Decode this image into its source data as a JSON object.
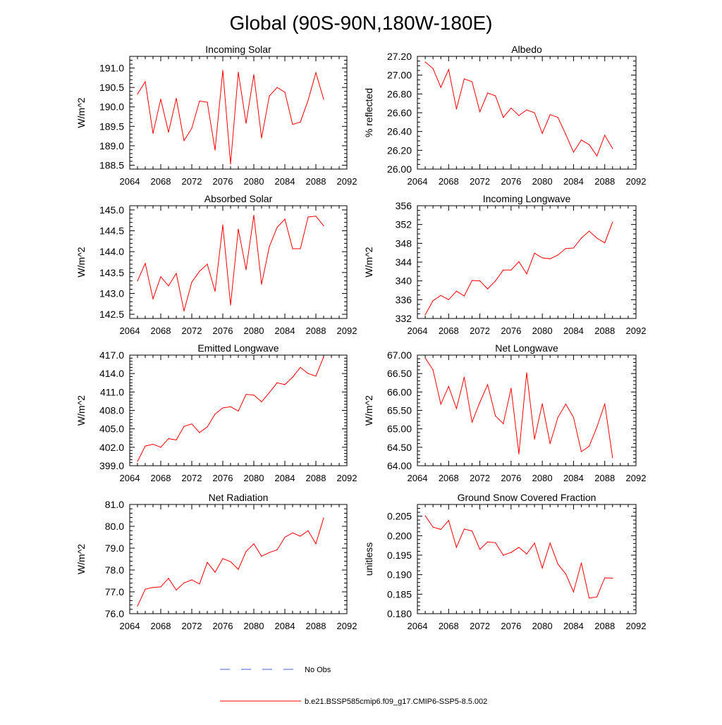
{
  "figure": {
    "title": "Global (90S-90N,180W-180E)",
    "legend": [
      {
        "label": "No Obs",
        "color": "#4a5fd0",
        "style": "dashed"
      },
      {
        "label": "b.e21.BSSP585cmip6.f09_g17.CMIP6-SSP5-8.5.002",
        "color": "#ff0000",
        "style": "solid"
      }
    ]
  },
  "chart_data": [
    {
      "type": "line",
      "title": "Incoming Solar",
      "xlabel": "",
      "ylabel": "W/m^2",
      "xlim": [
        2064,
        2092
      ],
      "xticks": [
        2064,
        2068,
        2072,
        2076,
        2080,
        2084,
        2088,
        2092
      ],
      "xminor": 1,
      "ylim": [
        188.4,
        191.3
      ],
      "yticks": [
        188.5,
        189.0,
        189.5,
        190.0,
        190.5,
        191.0
      ],
      "yminor": 0.1,
      "decimals": 1,
      "x": [
        2065,
        2066,
        2067,
        2068,
        2069,
        2070,
        2071,
        2072,
        2073,
        2074,
        2075,
        2076,
        2077,
        2078,
        2079,
        2080,
        2081,
        2082,
        2083,
        2084,
        2085,
        2086,
        2087,
        2088,
        2089
      ],
      "series": [
        {
          "name": "b.e21.BSSP585cmip6.f09_g17.CMIP6-SSP5-8.5.002",
          "color": "#ff0000",
          "values": [
            190.33,
            190.65,
            189.32,
            190.2,
            189.35,
            190.22,
            189.13,
            189.45,
            190.15,
            190.12,
            188.89,
            190.94,
            188.53,
            190.89,
            189.58,
            190.83,
            189.2,
            190.28,
            190.5,
            190.38,
            189.55,
            189.61,
            190.17,
            190.88,
            190.2
          ]
        }
      ]
    },
    {
      "type": "line",
      "title": "Albedo",
      "xlabel": "",
      "ylabel": "% reflected",
      "xlim": [
        2064,
        2092
      ],
      "xticks": [
        2064,
        2068,
        2072,
        2076,
        2080,
        2084,
        2088,
        2092
      ],
      "xminor": 1,
      "ylim": [
        26.0,
        27.2
      ],
      "yticks": [
        26.0,
        26.2,
        26.4,
        26.6,
        26.8,
        27.0,
        27.2
      ],
      "yminor": 0.05,
      "decimals": 2,
      "x": [
        2065,
        2066,
        2067,
        2068,
        2069,
        2070,
        2071,
        2072,
        2073,
        2074,
        2075,
        2076,
        2077,
        2078,
        2079,
        2080,
        2081,
        2082,
        2083,
        2084,
        2085,
        2086,
        2087,
        2088,
        2089
      ],
      "series": [
        {
          "name": "b.e21.BSSP585cmip6.f09_g17.CMIP6-SSP5-8.5.002",
          "color": "#ff0000",
          "values": [
            27.14,
            27.07,
            26.87,
            27.06,
            26.64,
            26.96,
            26.93,
            26.61,
            26.81,
            26.78,
            26.55,
            26.65,
            26.57,
            26.63,
            26.6,
            26.38,
            26.58,
            26.55,
            26.37,
            26.18,
            26.31,
            26.26,
            26.14,
            26.36,
            26.22
          ]
        }
      ]
    },
    {
      "type": "line",
      "title": "Absorbed Solar",
      "xlabel": "",
      "ylabel": "W/m^2",
      "xlim": [
        2064,
        2092
      ],
      "xticks": [
        2064,
        2068,
        2072,
        2076,
        2080,
        2084,
        2088,
        2092
      ],
      "xminor": 1,
      "ylim": [
        142.4,
        145.1
      ],
      "yticks": [
        142.5,
        143.0,
        143.5,
        144.0,
        144.5,
        145.0
      ],
      "yminor": 0.1,
      "decimals": 1,
      "x": [
        2065,
        2066,
        2067,
        2068,
        2069,
        2070,
        2071,
        2072,
        2073,
        2074,
        2075,
        2076,
        2077,
        2078,
        2079,
        2080,
        2081,
        2082,
        2083,
        2084,
        2085,
        2086,
        2087,
        2088,
        2089
      ],
      "series": [
        {
          "name": "b.e21.BSSP585cmip6.f09_g17.CMIP6-SSP5-8.5.002",
          "color": "#ff0000",
          "values": [
            143.3,
            143.72,
            142.87,
            143.4,
            143.18,
            143.48,
            142.58,
            143.27,
            143.53,
            143.7,
            143.05,
            144.64,
            142.72,
            144.54,
            143.57,
            144.87,
            143.22,
            144.12,
            144.58,
            144.78,
            144.07,
            144.07,
            144.83,
            144.85,
            144.62
          ]
        }
      ]
    },
    {
      "type": "line",
      "title": "Incoming Longwave",
      "xlabel": "",
      "ylabel": "W/m^2",
      "xlim": [
        2064,
        2092
      ],
      "xticks": [
        2064,
        2068,
        2072,
        2076,
        2080,
        2084,
        2088,
        2092
      ],
      "xminor": 1,
      "ylim": [
        332,
        356
      ],
      "yticks": [
        332,
        336,
        340,
        344,
        348,
        352,
        356
      ],
      "yminor": 1,
      "decimals": 0,
      "x": [
        2065,
        2066,
        2067,
        2068,
        2069,
        2070,
        2071,
        2072,
        2073,
        2074,
        2075,
        2076,
        2077,
        2078,
        2079,
        2080,
        2081,
        2082,
        2083,
        2084,
        2085,
        2086,
        2087,
        2088,
        2089
      ],
      "series": [
        {
          "name": "b.e21.BSSP585cmip6.f09_g17.CMIP6-SSP5-8.5.002",
          "color": "#ff0000",
          "values": [
            332.8,
            335.8,
            336.9,
            336,
            337.8,
            336.8,
            340.1,
            340,
            338.3,
            340,
            342.3,
            342.3,
            344.1,
            341.5,
            345.9,
            344.9,
            344.7,
            345.5,
            346.9,
            347,
            349.1,
            350.6,
            349.1,
            348.1,
            352.5
          ]
        }
      ]
    },
    {
      "type": "line",
      "title": "Emitted Longwave",
      "xlabel": "",
      "ylabel": "W/m^2",
      "xlim": [
        2064,
        2092
      ],
      "xticks": [
        2064,
        2068,
        2072,
        2076,
        2080,
        2084,
        2088,
        2092
      ],
      "xminor": 1,
      "ylim": [
        399,
        417
      ],
      "yticks": [
        399.0,
        402.0,
        405.0,
        408.0,
        411.0,
        414.0,
        417.0
      ],
      "yminor": 0.5,
      "decimals": 1,
      "x": [
        2065,
        2066,
        2067,
        2068,
        2069,
        2070,
        2071,
        2072,
        2073,
        2074,
        2075,
        2076,
        2077,
        2078,
        2079,
        2080,
        2081,
        2082,
        2083,
        2084,
        2085,
        2086,
        2087,
        2088,
        2089
      ],
      "series": [
        {
          "name": "b.e21.BSSP585cmip6.f09_g17.CMIP6-SSP5-8.5.002",
          "color": "#ff0000",
          "values": [
            399.7,
            402.2,
            402.5,
            402,
            403.4,
            403.2,
            405.4,
            405.8,
            404.4,
            405.3,
            407.4,
            408.4,
            408.6,
            407.9,
            410.6,
            410.5,
            409.4,
            410.9,
            412.5,
            412.2,
            413.4,
            415,
            414,
            413.6,
            416.7
          ]
        }
      ]
    },
    {
      "type": "line",
      "title": "Net Longwave",
      "xlabel": "",
      "ylabel": "W/m^2",
      "xlim": [
        2064,
        2092
      ],
      "xticks": [
        2064,
        2068,
        2072,
        2076,
        2080,
        2084,
        2088,
        2092
      ],
      "xminor": 1,
      "ylim": [
        64,
        67
      ],
      "yticks": [
        64.0,
        64.5,
        65.0,
        65.5,
        66.0,
        66.5,
        67.0
      ],
      "yminor": 0.1,
      "decimals": 2,
      "x": [
        2065,
        2066,
        2067,
        2068,
        2069,
        2070,
        2071,
        2072,
        2073,
        2074,
        2075,
        2076,
        2077,
        2078,
        2079,
        2080,
        2081,
        2082,
        2083,
        2084,
        2085,
        2086,
        2087,
        2088,
        2089
      ],
      "series": [
        {
          "name": "b.e21.BSSP585cmip6.f09_g17.CMIP6-SSP5-8.5.002",
          "color": "#ff0000",
          "values": [
            66.92,
            66.6,
            65.67,
            66.15,
            65.55,
            66.4,
            65.18,
            65.72,
            66.2,
            65.35,
            65.14,
            66.1,
            64.32,
            66.52,
            64.72,
            65.68,
            64.6,
            65.31,
            65.67,
            65.31,
            64.38,
            64.53,
            65.05,
            65.68,
            64.22
          ]
        }
      ]
    },
    {
      "type": "line",
      "title": "Net Radiation",
      "xlabel": "",
      "ylabel": "W/m^2",
      "xlim": [
        2064,
        2092
      ],
      "xticks": [
        2064,
        2068,
        2072,
        2076,
        2080,
        2084,
        2088,
        2092
      ],
      "xminor": 1,
      "ylim": [
        76,
        81
      ],
      "yticks": [
        76.0,
        77.0,
        78.0,
        79.0,
        80.0,
        81.0
      ],
      "yminor": 0.2,
      "decimals": 1,
      "x": [
        2065,
        2066,
        2067,
        2068,
        2069,
        2070,
        2071,
        2072,
        2073,
        2074,
        2075,
        2076,
        2077,
        2078,
        2079,
        2080,
        2081,
        2082,
        2083,
        2084,
        2085,
        2086,
        2087,
        2088,
        2089
      ],
      "series": [
        {
          "name": "b.e21.BSSP585cmip6.f09_g17.CMIP6-SSP5-8.5.002",
          "color": "#ff0000",
          "values": [
            76.35,
            77.12,
            77.2,
            77.23,
            77.62,
            77.08,
            77.41,
            77.55,
            77.36,
            78.35,
            77.9,
            78.52,
            78.38,
            78.03,
            78.85,
            79.2,
            78.63,
            78.8,
            78.92,
            79.5,
            79.7,
            79.55,
            79.8,
            79.2,
            80.38
          ]
        }
      ]
    },
    {
      "type": "line",
      "title": "Ground Snow Covered Fraction",
      "xlabel": "",
      "ylabel": "unitless",
      "xlim": [
        2064,
        2092
      ],
      "xticks": [
        2064,
        2068,
        2072,
        2076,
        2080,
        2084,
        2088,
        2092
      ],
      "xminor": 1,
      "ylim": [
        0.18,
        0.208
      ],
      "yticks": [
        0.18,
        0.185,
        0.19,
        0.195,
        0.2,
        0.205
      ],
      "yminor": 0.001,
      "decimals": 3,
      "x": [
        2065,
        2066,
        2067,
        2068,
        2069,
        2070,
        2071,
        2072,
        2073,
        2074,
        2075,
        2076,
        2077,
        2078,
        2079,
        2080,
        2081,
        2082,
        2083,
        2084,
        2085,
        2086,
        2087,
        2088,
        2089
      ],
      "series": [
        {
          "name": "b.e21.BSSP585cmip6.f09_g17.CMIP6-SSP5-8.5.002",
          "color": "#ff0000",
          "values": [
            0.2051,
            0.2022,
            0.2016,
            0.2039,
            0.197,
            0.2017,
            0.2012,
            0.1965,
            0.1984,
            0.1982,
            0.195,
            0.1957,
            0.197,
            0.1953,
            0.1981,
            0.1917,
            0.1981,
            0.1927,
            0.1902,
            0.1856,
            0.193,
            0.184,
            0.1843,
            0.1892,
            0.1891
          ]
        }
      ]
    }
  ]
}
